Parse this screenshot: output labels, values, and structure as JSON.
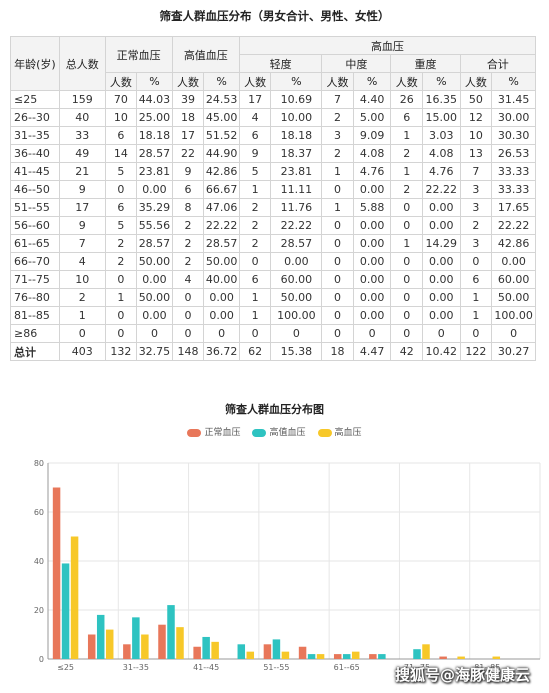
{
  "table": {
    "title": "筛查人群血压分布（男女合计、男性、女性）",
    "headers": {
      "age": "年龄(岁)",
      "total": "总人数",
      "normal": "正常血压",
      "high_normal": "高值血压",
      "hypertension": "高血压",
      "mild": "轻度",
      "moderate": "中度",
      "severe": "重度",
      "sum": "合计",
      "count": "人数",
      "pct": "%"
    },
    "rows": [
      [
        "≤25",
        "159",
        "70",
        "44.03",
        "39",
        "24.53",
        "17",
        "10.69",
        "7",
        "4.40",
        "26",
        "16.35",
        "50",
        "31.45"
      ],
      [
        "26--30",
        "40",
        "10",
        "25.00",
        "18",
        "45.00",
        "4",
        "10.00",
        "2",
        "5.00",
        "6",
        "15.00",
        "12",
        "30.00"
      ],
      [
        "31--35",
        "33",
        "6",
        "18.18",
        "17",
        "51.52",
        "6",
        "18.18",
        "3",
        "9.09",
        "1",
        "3.03",
        "10",
        "30.30"
      ],
      [
        "36--40",
        "49",
        "14",
        "28.57",
        "22",
        "44.90",
        "9",
        "18.37",
        "2",
        "4.08",
        "2",
        "4.08",
        "13",
        "26.53"
      ],
      [
        "41--45",
        "21",
        "5",
        "23.81",
        "9",
        "42.86",
        "5",
        "23.81",
        "1",
        "4.76",
        "1",
        "4.76",
        "7",
        "33.33"
      ],
      [
        "46--50",
        "9",
        "0",
        "0.00",
        "6",
        "66.67",
        "1",
        "11.11",
        "0",
        "0.00",
        "2",
        "22.22",
        "3",
        "33.33"
      ],
      [
        "51--55",
        "17",
        "6",
        "35.29",
        "8",
        "47.06",
        "2",
        "11.76",
        "1",
        "5.88",
        "0",
        "0.00",
        "3",
        "17.65"
      ],
      [
        "56--60",
        "9",
        "5",
        "55.56",
        "2",
        "22.22",
        "2",
        "22.22",
        "0",
        "0.00",
        "0",
        "0.00",
        "2",
        "22.22"
      ],
      [
        "61--65",
        "7",
        "2",
        "28.57",
        "2",
        "28.57",
        "2",
        "28.57",
        "0",
        "0.00",
        "1",
        "14.29",
        "3",
        "42.86"
      ],
      [
        "66--70",
        "4",
        "2",
        "50.00",
        "2",
        "50.00",
        "0",
        "0.00",
        "0",
        "0.00",
        "0",
        "0.00",
        "0",
        "0.00"
      ],
      [
        "71--75",
        "10",
        "0",
        "0.00",
        "4",
        "40.00",
        "6",
        "60.00",
        "0",
        "0.00",
        "0",
        "0.00",
        "6",
        "60.00"
      ],
      [
        "76--80",
        "2",
        "1",
        "50.00",
        "0",
        "0.00",
        "1",
        "50.00",
        "0",
        "0.00",
        "0",
        "0.00",
        "1",
        "50.00"
      ],
      [
        "81--85",
        "1",
        "0",
        "0.00",
        "0",
        "0.00",
        "1",
        "100.00",
        "0",
        "0.00",
        "0",
        "0.00",
        "1",
        "100.00"
      ],
      [
        "≥86",
        "0",
        "0",
        "0",
        "0",
        "0",
        "0",
        "0",
        "0",
        "0",
        "0",
        "0",
        "0",
        "0"
      ]
    ],
    "total_row": [
      "总计",
      "403",
      "132",
      "32.75",
      "148",
      "36.72",
      "62",
      "15.38",
      "18",
      "4.47",
      "42",
      "10.42",
      "122",
      "30.27"
    ]
  },
  "chart_data": {
    "type": "bar",
    "title": "筛查人群血压分布图",
    "categories": [
      "≤25",
      "26--30",
      "31--35",
      "36--40",
      "41--45",
      "46--50",
      "51--55",
      "56--60",
      "61--65",
      "66--70",
      "71--75",
      "76--80",
      "81--85",
      "≥86"
    ],
    "tick_labels": [
      "≤25",
      "",
      "31--35",
      "",
      "41--45",
      "",
      "51--55",
      "",
      "61--65",
      "",
      "71--75",
      "",
      "81--85",
      ""
    ],
    "series": [
      {
        "name": "正常血压",
        "color": "#e8775a",
        "values": [
          70,
          10,
          6,
          14,
          5,
          0,
          6,
          5,
          2,
          2,
          0,
          1,
          0,
          0
        ]
      },
      {
        "name": "高值血压",
        "color": "#2ec3c1",
        "values": [
          39,
          18,
          17,
          22,
          9,
          6,
          8,
          2,
          2,
          2,
          4,
          0,
          0,
          0
        ]
      },
      {
        "name": "高血压",
        "color": "#f7c829",
        "values": [
          50,
          12,
          10,
          13,
          7,
          3,
          3,
          2,
          3,
          0,
          6,
          1,
          1,
          0
        ]
      }
    ],
    "ylim": [
      0,
      80
    ],
    "yticks": [
      "0",
      "20",
      "40",
      "60",
      "80"
    ],
    "grid": true,
    "legend": "top-center"
  },
  "watermark": "搜狐号@海豚健康云"
}
